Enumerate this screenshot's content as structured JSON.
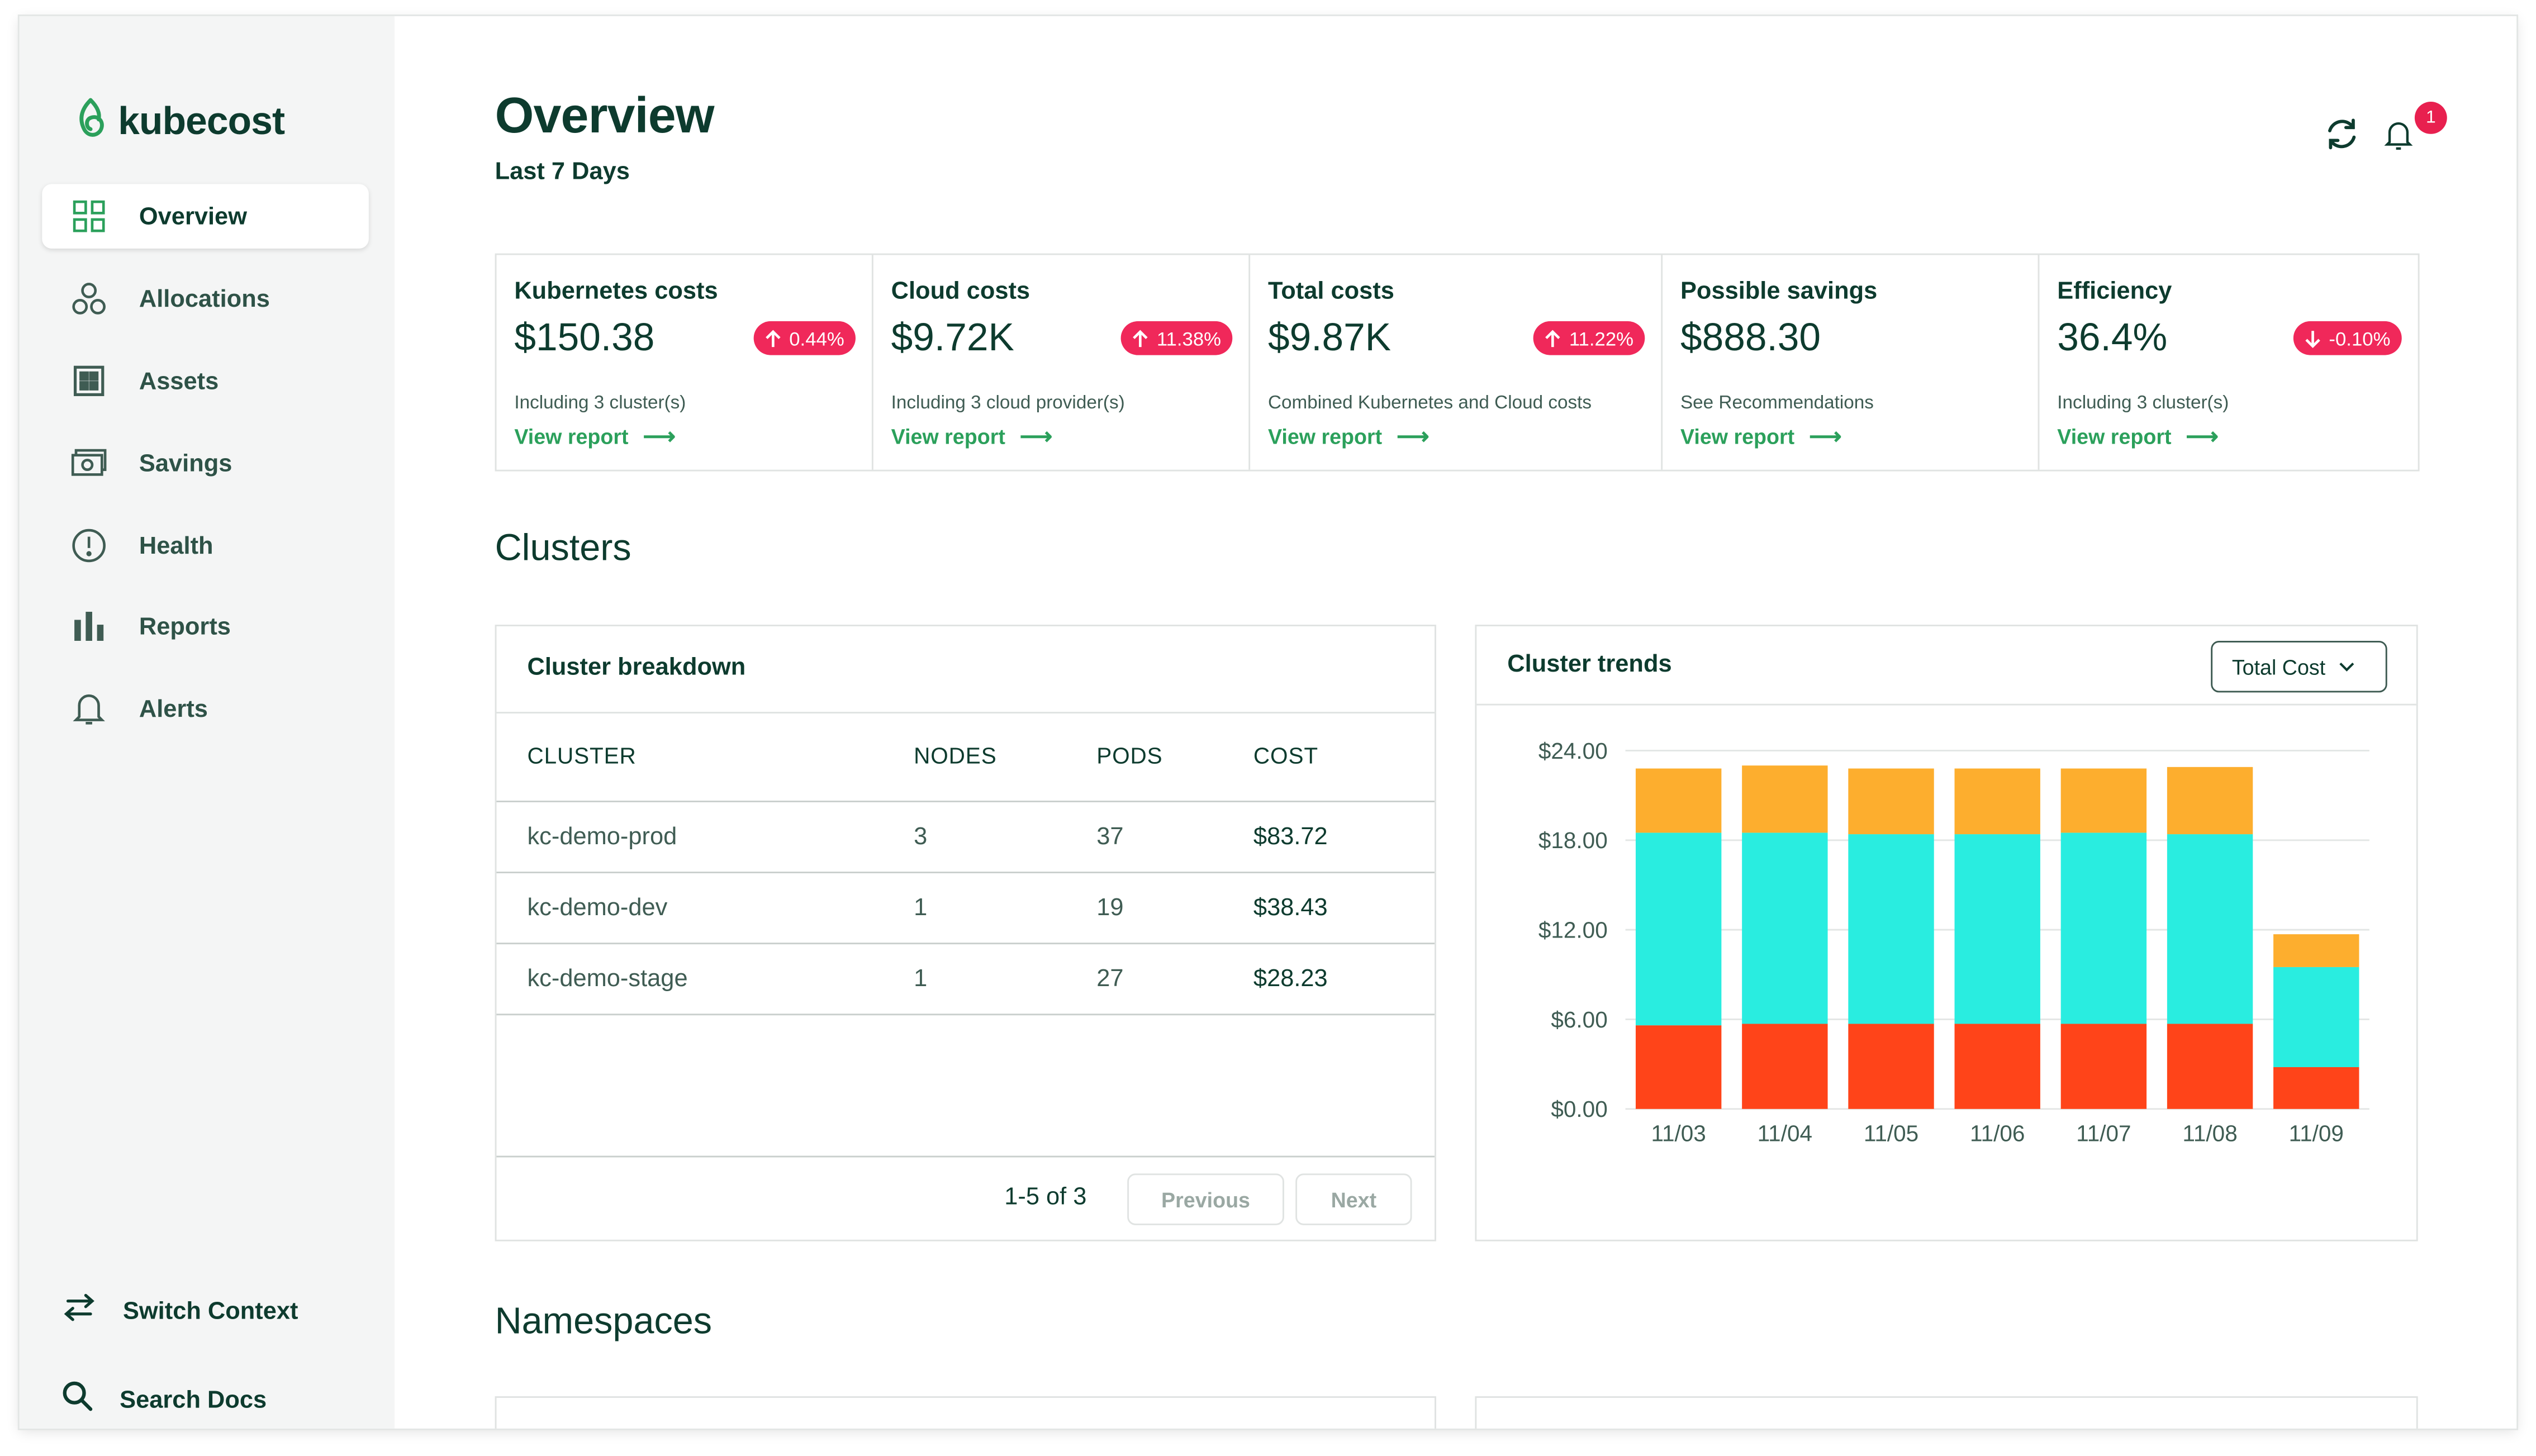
{
  "app": {
    "name": "kubecost"
  },
  "sidebar": {
    "items": [
      {
        "label": "Overview",
        "icon": "grid-icon",
        "active": true
      },
      {
        "label": "Allocations",
        "icon": "allocations-icon",
        "active": false
      },
      {
        "label": "Assets",
        "icon": "assets-icon",
        "active": false
      },
      {
        "label": "Savings",
        "icon": "savings-icon",
        "active": false
      },
      {
        "label": "Health",
        "icon": "health-icon",
        "active": false
      },
      {
        "label": "Reports",
        "icon": "bar-chart-icon",
        "active": false
      },
      {
        "label": "Alerts",
        "icon": "bell-icon",
        "active": false
      }
    ],
    "switch_context": "Switch Context",
    "search_docs": "Search Docs"
  },
  "header": {
    "title": "Overview",
    "subtitle": "Last 7 Days",
    "notification_count": "1"
  },
  "metrics": [
    {
      "title": "Kubernetes costs",
      "value": "$150.38",
      "change": "0.44%",
      "direction": "up",
      "sub": "Including 3 cluster(s)",
      "link": "View report"
    },
    {
      "title": "Cloud costs",
      "value": "$9.72K",
      "change": "11.38%",
      "direction": "up",
      "sub": "Including 3 cloud provider(s)",
      "link": "View report"
    },
    {
      "title": "Total costs",
      "value": "$9.87K",
      "change": "11.22%",
      "direction": "up",
      "sub": "Combined Kubernetes and Cloud costs",
      "link": "View report"
    },
    {
      "title": "Possible savings",
      "value": "$888.30",
      "change": "",
      "direction": "",
      "sub": "See Recommendations",
      "link": "View report"
    },
    {
      "title": "Efficiency",
      "value": "36.4%",
      "change": "-0.10%",
      "direction": "down",
      "sub": "Including 3 cluster(s)",
      "link": "View report"
    }
  ],
  "clusters": {
    "section_title": "Clusters",
    "breakdown": {
      "title": "Cluster breakdown",
      "columns": [
        "CLUSTER",
        "NODES",
        "PODS",
        "COST"
      ],
      "rows": [
        [
          "kc-demo-prod",
          "3",
          "37",
          "$83.72"
        ],
        [
          "kc-demo-dev",
          "1",
          "19",
          "$38.43"
        ],
        [
          "kc-demo-stage",
          "1",
          "27",
          "$28.23"
        ]
      ],
      "pagination": "1-5 of 3",
      "previous": "Previous",
      "next": "Next"
    },
    "trends": {
      "title": "Cluster trends",
      "dropdown_value": "Total Cost"
    }
  },
  "namespaces": {
    "section_title": "Namespaces"
  },
  "colors": {
    "accent": "#2ba05b",
    "alert_pill": "#f0285a",
    "series_orange": "#ff4419",
    "series_cyan": "#29ede0",
    "series_yellow": "#fdae2e"
  },
  "chart_data": {
    "type": "bar",
    "stacked": true,
    "categories": [
      "11/03",
      "11/04",
      "11/05",
      "11/06",
      "11/07",
      "11/08",
      "11/09"
    ],
    "series": [
      {
        "color": "#ff4419",
        "values": [
          5.6,
          5.7,
          5.7,
          5.7,
          5.7,
          5.7,
          2.8
        ]
      },
      {
        "color": "#29ede0",
        "values": [
          12.9,
          12.8,
          12.7,
          12.7,
          12.8,
          12.7,
          6.7
        ]
      },
      {
        "color": "#fdae2e",
        "values": [
          4.3,
          4.5,
          4.4,
          4.4,
          4.3,
          4.5,
          2.2
        ]
      }
    ],
    "y_ticks": [
      "$0.00",
      "$6.00",
      "$12.00",
      "$18.00",
      "$24.00"
    ],
    "ylim": [
      0,
      24
    ],
    "grid": true
  }
}
